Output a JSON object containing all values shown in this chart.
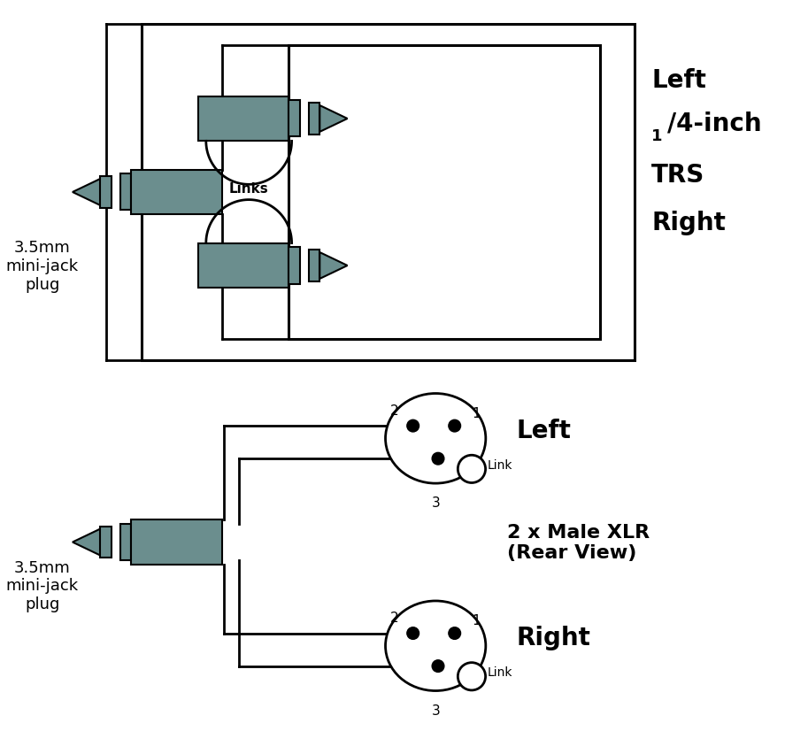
{
  "bg_color": "#ffffff",
  "plug_color": "#6b8e8e",
  "line_color": "#000000",
  "text_color": "#000000",
  "figsize": [
    9.13,
    8.53
  ],
  "dpi": 100,
  "top_label_left": "3.5mm\nmini-jack\nplug",
  "top_label_right_line1": "Left",
  "top_label_right_fraction": "1",
  "top_label_right_denom": "/4-inch",
  "top_label_right_trs": "TRS",
  "top_label_right_right": "Right",
  "top_links_label": "Links",
  "bot_label_left": "3.5mm\nmini-jack\nplug",
  "bot_label_right1": "Left",
  "bot_label_right2": "2 x Male XLR\n(Rear View)",
  "bot_label_right3": "Right",
  "bot_link_label": "Link"
}
